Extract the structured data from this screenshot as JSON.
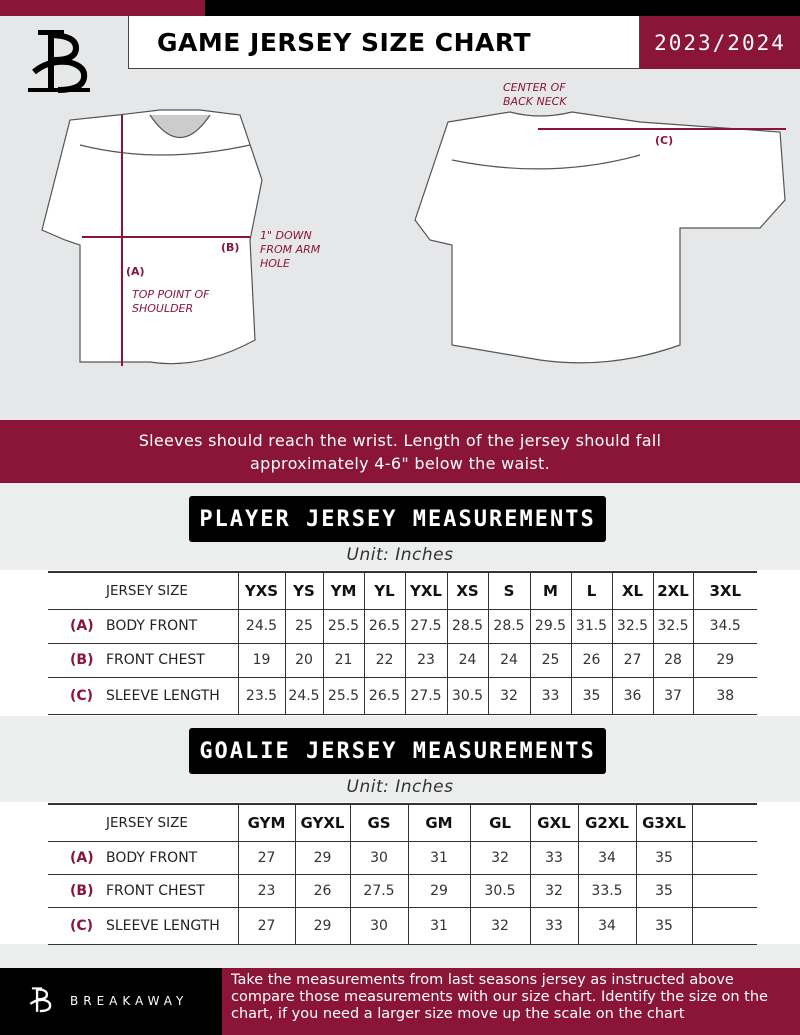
{
  "header": {
    "title": "GAME JERSEY SIZE CHART",
    "season": "2023/2024"
  },
  "brand": {
    "name": "BREAKAWAY",
    "colors": {
      "maroon": "#8a1538",
      "black": "#000000"
    }
  },
  "diagram": {
    "center_back_neck": "CENTER OF BACK NECK",
    "label_a": "(A)",
    "label_b": "(B)",
    "label_c": "(C)",
    "down_note": "1\" DOWN FROM ARM HOLE",
    "shoulder_note": "TOP POINT OF SHOULDER"
  },
  "banner": {
    "line1": "Sleeves should reach the wrist. Length of the jersey should fall",
    "line2": "approximately 4-6\" below the waist."
  },
  "player": {
    "title": "PLAYER JERSEY MEASUREMENTS",
    "unit": "Unit: Inches",
    "header_label": "JERSEY SIZE",
    "sizes": [
      "YXS",
      "YS",
      "YM",
      "YL",
      "YXL",
      "XS",
      "S",
      "M",
      "L",
      "XL",
      "2XL",
      "3XL"
    ],
    "rows": [
      {
        "letter": "(A)",
        "label": "BODY FRONT",
        "values": [
          "24.5",
          "25",
          "25.5",
          "26.5",
          "27.5",
          "28.5",
          "28.5",
          "29.5",
          "31.5",
          "32.5",
          "32.5",
          "34.5"
        ]
      },
      {
        "letter": "(B)",
        "label": "FRONT CHEST",
        "values": [
          "19",
          "20",
          "21",
          "22",
          "23",
          "24",
          "24",
          "25",
          "26",
          "27",
          "28",
          "29"
        ]
      },
      {
        "letter": "(C)",
        "label": "SLEEVE LENGTH",
        "values": [
          "23.5",
          "24.5",
          "25.5",
          "26.5",
          "27.5",
          "30.5",
          "32",
          "33",
          "35",
          "36",
          "37",
          "38"
        ]
      }
    ]
  },
  "goalie": {
    "title": "GOALIE JERSEY MEASUREMENTS",
    "unit": "Unit: Inches",
    "header_label": "JERSEY SIZE",
    "sizes": [
      "GYM",
      "GYXL",
      "GS",
      "GM",
      "GL",
      "GXL",
      "G2XL",
      "G3XL",
      ""
    ],
    "rows": [
      {
        "letter": "(A)",
        "label": "BODY FRONT",
        "values": [
          "27",
          "29",
          "30",
          "31",
          "32",
          "33",
          "34",
          "35",
          ""
        ]
      },
      {
        "letter": "(B)",
        "label": "FRONT CHEST",
        "values": [
          "23",
          "26",
          "27.5",
          "29",
          "30.5",
          "32",
          "33.5",
          "35",
          ""
        ]
      },
      {
        "letter": "(C)",
        "label": "SLEEVE LENGTH",
        "values": [
          "27",
          "29",
          "30",
          "31",
          "32",
          "33",
          "34",
          "35",
          ""
        ]
      }
    ]
  },
  "footer": {
    "text": "Take the measurements from last seasons jersey as instructed above compare those measurements  with our size chart. Identify the size on the chart, if you need a larger size move up the scale on the chart"
  }
}
